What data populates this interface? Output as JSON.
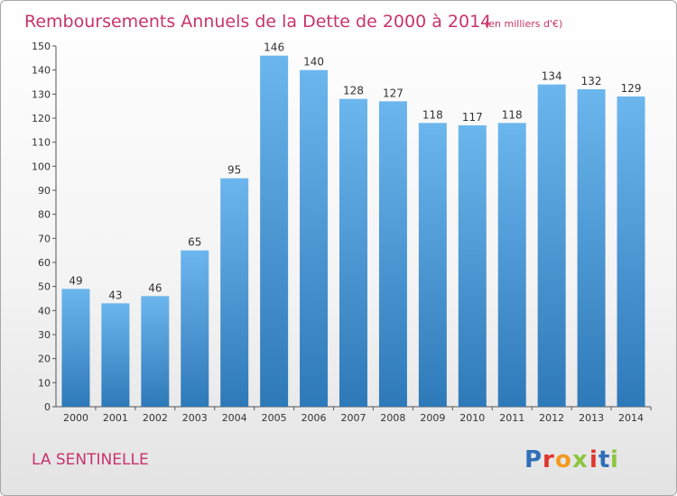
{
  "chart_data": {
    "type": "bar",
    "title": "Remboursements Annuels de la Dette de 2000 à 2014",
    "unit": "(en milliers d'€)",
    "categories": [
      "2000",
      "2001",
      "2002",
      "2003",
      "2004",
      "2005",
      "2006",
      "2007",
      "2008",
      "2009",
      "2010",
      "2011",
      "2012",
      "2013",
      "2014"
    ],
    "values": [
      49,
      43,
      46,
      65,
      95,
      146,
      140,
      128,
      127,
      118,
      117,
      118,
      134,
      132,
      129
    ],
    "xlabel": "",
    "ylabel": "",
    "ylim": [
      0,
      150
    ],
    "yticks": [
      0,
      10,
      20,
      30,
      40,
      50,
      60,
      70,
      80,
      90,
      100,
      110,
      120,
      130,
      140,
      150
    ],
    "grid": false,
    "legend": "none"
  },
  "commune": "LA SENTINELLE",
  "logo": {
    "text": "Proxiti",
    "letter_colors": [
      "#2f6fb8",
      "#e0342c",
      "#f39a1e",
      "#8cc641",
      "#e0342c",
      "#2f6fb8",
      "#8cc641"
    ]
  },
  "colors": {
    "bar_top": "#6cb6ee",
    "bar_bottom": "#2e79b8",
    "axis": "#555555",
    "title": "#c8346a"
  }
}
